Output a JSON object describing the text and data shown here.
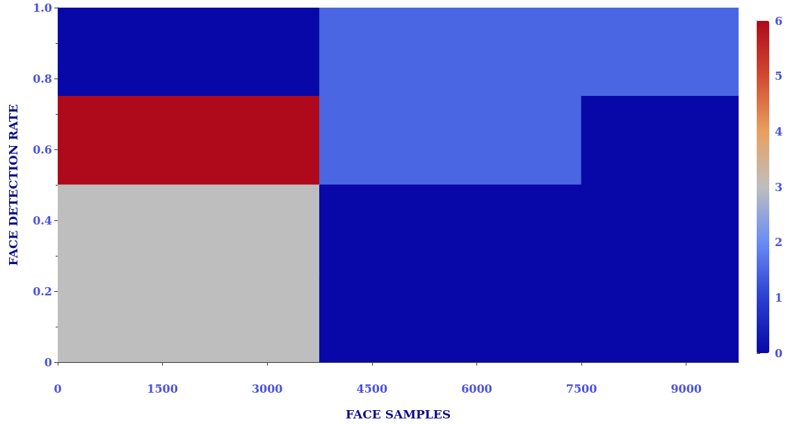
{
  "chart_data": {
    "type": "heatmap",
    "xlabel": "FACE SAMPLES",
    "ylabel": "FACE DETECTION RATE",
    "x": [
      1875,
      5625,
      9375
    ],
    "y": [
      0.875,
      0.625,
      0.375,
      0.125
    ],
    "cells": [
      [
        0,
        1.5,
        1.5
      ],
      [
        6,
        1.5,
        0
      ],
      [
        3,
        0,
        0
      ],
      [
        3,
        0,
        0
      ]
    ],
    "xlim": [
      0,
      9750
    ],
    "xticks": [
      0,
      1500,
      3000,
      4500,
      6000,
      7500,
      9000
    ],
    "ylim": [
      0,
      1
    ],
    "yticks": [
      0,
      0.2,
      0.4,
      0.6,
      0.8,
      {
        "value": 1,
        "label": "1.0"
      }
    ],
    "clim": [
      0,
      6
    ],
    "cticks": [
      0,
      1,
      2,
      3,
      4,
      5,
      6
    ],
    "grid": false
  }
}
